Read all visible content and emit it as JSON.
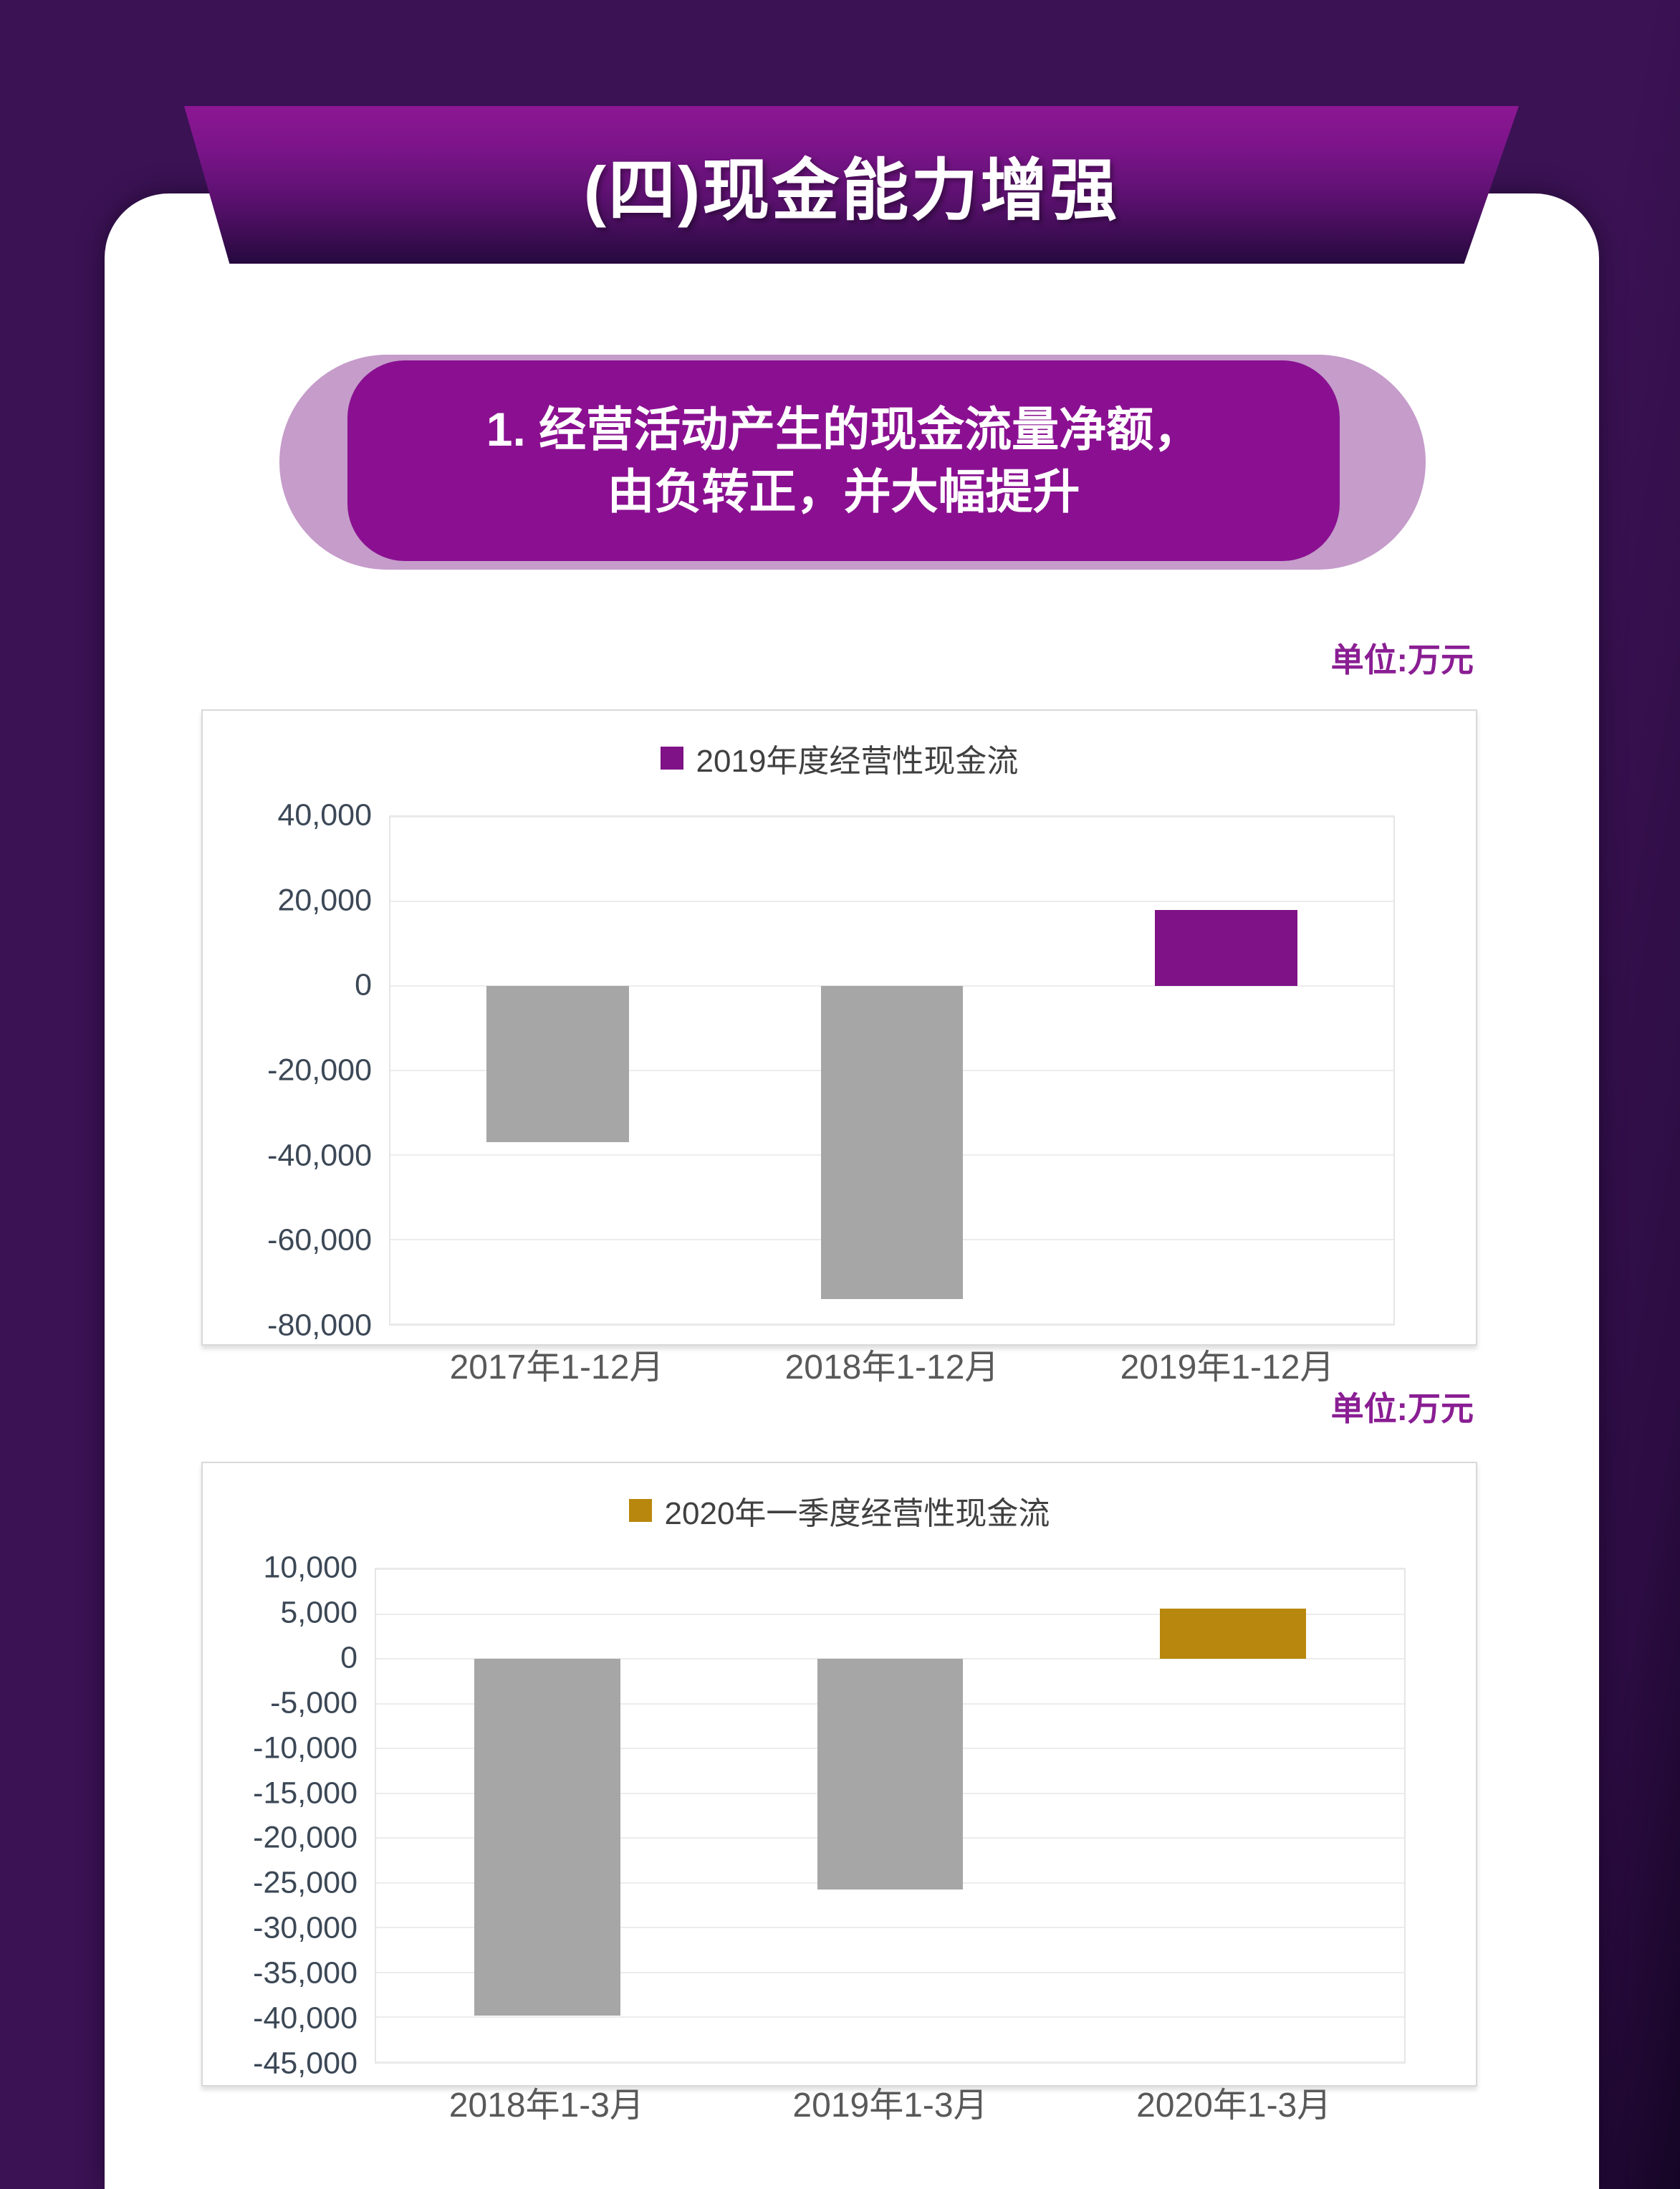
{
  "page": {
    "title": "(四)现金能力增强",
    "subtitle_line1": "1. 经营活动产生的现金流量净额，",
    "subtitle_line2": "由负转正，并大幅提升",
    "unit_label_1": "单位:万元",
    "unit_label_2": "单位:万元"
  },
  "colors": {
    "background": "#3B1254",
    "banner_gradient_top": "#8C1793",
    "banner_gradient_bottom": "#26093E",
    "pill_outer": "#C59CCA",
    "pill_inner": "#8A1091",
    "unit_text": "#8A1E93",
    "bar_gray": "#A6A6A6",
    "bar_purple": "#7E1286",
    "bar_gold": "#B8870D",
    "tick_text": "#3C4856",
    "category_text": "#595959",
    "legend_text": "#404040",
    "grid_line": "#ECECEC",
    "chart_border": "#D9D9D9"
  },
  "chart_data": [
    {
      "type": "bar",
      "title": "2019年度经营性现金流",
      "legend_color": "#7E1286",
      "categories": [
        "2017年1-12月",
        "2018年1-12月",
        "2019年1-12月"
      ],
      "values": [
        -37000,
        -74000,
        18000
      ],
      "bar_colors": [
        "#A6A6A6",
        "#A6A6A6",
        "#7E1286"
      ],
      "ylim": [
        -80000,
        40000
      ],
      "ytick_step": 20000,
      "xlabel": "",
      "ylabel": "",
      "unit": "万元",
      "grid": true,
      "legend_position": "top-center"
    },
    {
      "type": "bar",
      "title": "2020年一季度经营性现金流",
      "legend_color": "#B8870D",
      "categories": [
        "2018年1-3月",
        "2019年1-3月",
        "2020年1-3月"
      ],
      "values": [
        -39800,
        -25700,
        5600
      ],
      "bar_colors": [
        "#A6A6A6",
        "#A6A6A6",
        "#B8870D"
      ],
      "ylim": [
        -45000,
        10000
      ],
      "ytick_step": 5000,
      "xlabel": "",
      "ylabel": "",
      "unit": "万元",
      "grid": true,
      "legend_position": "top-center"
    }
  ]
}
